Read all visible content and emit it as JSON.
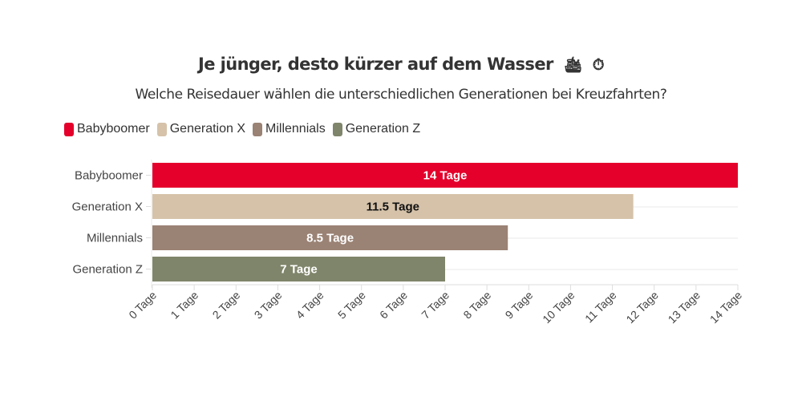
{
  "header": {
    "title": "Je jünger, desto kürzer auf dem Wasser",
    "title_icons": [
      "🛳",
      "⏱"
    ],
    "subtitle": "Welche Reisedauer wählen die unterschiedlichen Generationen bei Kreuzfahrten?"
  },
  "chart_data": {
    "type": "bar",
    "orientation": "horizontal",
    "title": "Je jünger, desto kürzer auf dem Wasser",
    "subtitle": "Welche Reisedauer wählen die unterschiedlichen Generationen bei Kreuzfahrten?",
    "categories": [
      "Babyboomer",
      "Generation X",
      "Millennials",
      "Generation Z"
    ],
    "values": [
      14,
      11.5,
      8.5,
      7
    ],
    "value_labels": [
      "14 Tage",
      "11.5 Tage",
      "8.5 Tage",
      "7 Tage"
    ],
    "colors": [
      "#e4002b",
      "#d5c2a9",
      "#9a8274",
      "#7f856a"
    ],
    "label_colors": [
      "#ffffff",
      "#111111",
      "#ffffff",
      "#ffffff"
    ],
    "legend": {
      "position": "top-left",
      "entries": [
        {
          "label": "Babyboomer",
          "color": "#e4002b"
        },
        {
          "label": "Generation X",
          "color": "#d5c2a9"
        },
        {
          "label": "Millennials",
          "color": "#9a8274"
        },
        {
          "label": "Generation Z",
          "color": "#7f856a"
        }
      ]
    },
    "xlabel": "",
    "ylabel": "",
    "xlim": [
      0,
      14
    ],
    "x_ticks": [
      0,
      1,
      2,
      3,
      4,
      5,
      6,
      7,
      8,
      9,
      10,
      11,
      12,
      13,
      14
    ],
    "x_tick_labels": [
      "0 Tage",
      "1 Tage",
      "2 Tage",
      "3 Tage",
      "4 Tage",
      "5 Tage",
      "6 Tage",
      "7 Tage",
      "8 Tage",
      "9 Tage",
      "10 Tage",
      "11 Tage",
      "12 Tage",
      "13 Tage",
      "14 Tage"
    ],
    "grid": true
  }
}
